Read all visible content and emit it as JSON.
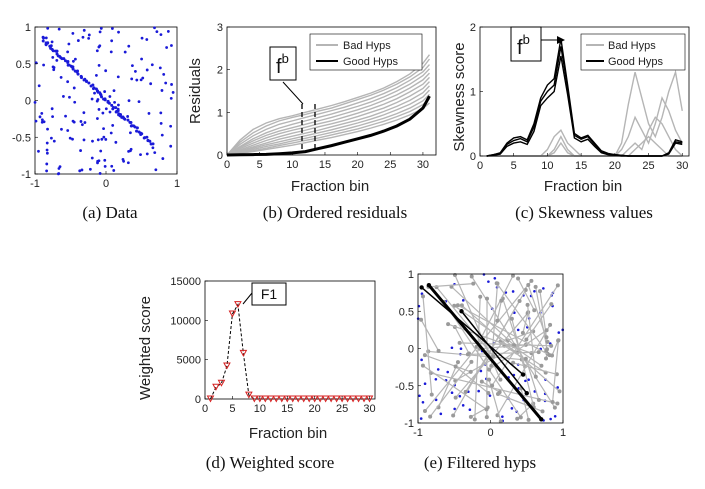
{
  "chart_data": [
    {
      "id": "a",
      "type": "scatter",
      "caption": "(a) Data",
      "xlim": [
        -1,
        1
      ],
      "ylim": [
        -1,
        1
      ],
      "xticks": [
        "-1",
        "0",
        "1"
      ],
      "yticks": [
        "1",
        "0.5",
        "0",
        "-0.5",
        "-1"
      ],
      "point_color": "#1a1ad8",
      "inlier_line": {
        "from": [
          -0.9,
          0.85
        ],
        "to": [
          0.65,
          -0.6
        ]
      },
      "inlier_count": 90,
      "outlier_count": 170
    },
    {
      "id": "b",
      "type": "line",
      "caption": "(b) Ordered residuals",
      "xlabel": "Fraction bin",
      "ylabel": "Residuals",
      "xlim": [
        0,
        32
      ],
      "ylim": [
        0,
        3
      ],
      "xticks": [
        "0",
        "5",
        "10",
        "15",
        "20",
        "25",
        "30"
      ],
      "yticks": [
        "3",
        "2",
        "1",
        "0"
      ],
      "legend": [
        "Bad Hyps",
        "Good Hyps"
      ],
      "legend_position": "top-right",
      "annotation": {
        "label": "f",
        "sup": "b",
        "bin_range": [
          11.5,
          13.5
        ]
      },
      "series": [
        {
          "name": "Good Hyps",
          "color": "#000000",
          "x": [
            0,
            2,
            4,
            6,
            8,
            10,
            12,
            14,
            16,
            18,
            20,
            22,
            24,
            26,
            28,
            30,
            31
          ],
          "y": [
            0,
            0.005,
            0.01,
            0.015,
            0.03,
            0.05,
            0.08,
            0.15,
            0.22,
            0.3,
            0.38,
            0.46,
            0.56,
            0.68,
            0.84,
            1.1,
            1.38
          ]
        },
        {
          "name": "Bad Hyps",
          "color": "#b5b5b5",
          "x": [
            0,
            2,
            4,
            6,
            8,
            10,
            12,
            14,
            16,
            18,
            20,
            22,
            24,
            26,
            28,
            30,
            31
          ],
          "lines": [
            [
              0,
              0.35,
              0.6,
              0.75,
              0.85,
              0.92,
              1.0,
              1.08,
              1.16,
              1.25,
              1.35,
              1.45,
              1.57,
              1.72,
              1.9,
              2.15,
              2.35
            ],
            [
              0,
              0.3,
              0.52,
              0.68,
              0.8,
              0.88,
              0.95,
              1.03,
              1.1,
              1.2,
              1.3,
              1.4,
              1.52,
              1.66,
              1.83,
              2.05,
              2.25
            ],
            [
              0,
              0.25,
              0.45,
              0.6,
              0.72,
              0.8,
              0.88,
              0.96,
              1.04,
              1.12,
              1.22,
              1.32,
              1.44,
              1.58,
              1.75,
              1.95,
              2.12
            ],
            [
              0,
              0.2,
              0.38,
              0.52,
              0.63,
              0.72,
              0.8,
              0.88,
              0.96,
              1.05,
              1.14,
              1.24,
              1.36,
              1.5,
              1.66,
              1.86,
              2.02
            ],
            [
              0,
              0.18,
              0.33,
              0.46,
              0.56,
              0.64,
              0.72,
              0.8,
              0.88,
              0.97,
              1.06,
              1.16,
              1.28,
              1.41,
              1.57,
              1.76,
              1.92
            ],
            [
              0,
              0.15,
              0.28,
              0.4,
              0.5,
              0.58,
              0.65,
              0.73,
              0.8,
              0.89,
              0.98,
              1.08,
              1.19,
              1.32,
              1.48,
              1.66,
              1.82
            ],
            [
              0,
              0.12,
              0.23,
              0.34,
              0.43,
              0.51,
              0.58,
              0.66,
              0.73,
              0.81,
              0.9,
              1.0,
              1.1,
              1.23,
              1.38,
              1.56,
              1.72
            ],
            [
              0,
              0.1,
              0.19,
              0.28,
              0.37,
              0.44,
              0.51,
              0.58,
              0.66,
              0.74,
              0.82,
              0.91,
              1.02,
              1.14,
              1.28,
              1.46,
              1.62
            ],
            [
              0,
              0.08,
              0.16,
              0.24,
              0.31,
              0.38,
              0.45,
              0.52,
              0.59,
              0.67,
              0.75,
              0.84,
              0.94,
              1.06,
              1.19,
              1.36,
              1.52
            ],
            [
              0,
              0.06,
              0.13,
              0.2,
              0.26,
              0.33,
              0.39,
              0.46,
              0.53,
              0.6,
              0.68,
              0.77,
              0.86,
              0.97,
              1.1,
              1.27,
              1.42
            ],
            [
              0,
              0.05,
              0.1,
              0.16,
              0.22,
              0.28,
              0.34,
              0.4,
              0.47,
              0.54,
              0.61,
              0.7,
              0.79,
              0.9,
              1.02,
              1.18,
              1.32
            ],
            [
              0,
              0.04,
              0.08,
              0.13,
              0.18,
              0.23,
              0.29,
              0.35,
              0.41,
              0.48,
              0.55,
              0.63,
              0.72,
              0.82,
              0.94,
              1.09,
              1.22
            ]
          ]
        }
      ]
    },
    {
      "id": "c",
      "type": "line",
      "caption": "(c) Skewness values",
      "xlabel": "Fraction bin",
      "ylabel": "Skewness score",
      "xlim": [
        0,
        31
      ],
      "ylim": [
        0,
        2
      ],
      "xticks": [
        "0",
        "5",
        "10",
        "15",
        "20",
        "25",
        "30"
      ],
      "yticks": [
        "2",
        "1",
        "0"
      ],
      "legend": [
        "Bad Hyps",
        "Good Hyps"
      ],
      "legend_position": "top-right",
      "annotation": {
        "label": "f",
        "sup": "b",
        "bin": 12
      },
      "series": [
        {
          "name": "Good Hyps",
          "color": "#000000",
          "x": [
            1,
            2,
            3,
            4,
            5,
            6,
            7,
            8,
            9,
            10,
            11,
            12,
            13,
            14,
            15,
            16,
            17,
            18,
            19,
            20,
            21,
            22,
            23,
            24,
            25,
            26,
            27,
            28,
            29,
            30
          ],
          "lines": [
            [
              0,
              0.02,
              0.05,
              0.2,
              0.28,
              0.3,
              0.25,
              0.5,
              0.9,
              1.1,
              1.2,
              1.82,
              1.1,
              0.35,
              0.28,
              0.32,
              0.2,
              0.08,
              0.04,
              0.02,
              0.01,
              0,
              0,
              0,
              0,
              0,
              0,
              0.05,
              0.25,
              0.22
            ],
            [
              0,
              0.02,
              0.04,
              0.18,
              0.24,
              0.27,
              0.22,
              0.45,
              0.85,
              1.0,
              1.1,
              1.7,
              1.05,
              0.32,
              0.26,
              0.3,
              0.18,
              0.06,
              0.03,
              0.02,
              0.01,
              0,
              0,
              0,
              0,
              0,
              0,
              0.04,
              0.22,
              0.2
            ],
            [
              0,
              0.01,
              0.03,
              0.15,
              0.2,
              0.22,
              0.18,
              0.38,
              0.78,
              0.9,
              1.0,
              1.55,
              0.95,
              0.28,
              0.22,
              0.26,
              0.15,
              0.05,
              0.02,
              0.01,
              0,
              0,
              0,
              0,
              0,
              0,
              0,
              0.03,
              0.2,
              0.18
            ]
          ]
        },
        {
          "name": "Bad Hyps",
          "color": "#b5b5b5",
          "x": [
            1,
            2,
            3,
            4,
            5,
            6,
            7,
            8,
            9,
            10,
            11,
            12,
            13,
            14,
            15,
            16,
            17,
            18,
            19,
            20,
            21,
            22,
            23,
            24,
            25,
            26,
            27,
            28,
            29,
            30
          ],
          "lines": [
            [
              0,
              0,
              0,
              0,
              0,
              0,
              0,
              0,
              0,
              0,
              0,
              0,
              0,
              0,
              0,
              0,
              0,
              0,
              0,
              0,
              0.2,
              0.8,
              1.3,
              0.9,
              0.5,
              0.3,
              0.6,
              1.0,
              1.3,
              0.7
            ],
            [
              0,
              0,
              0,
              0,
              0,
              0,
              0,
              0,
              0,
              0,
              0.1,
              0.3,
              0.1,
              0,
              0,
              0,
              0,
              0,
              0,
              0,
              0.1,
              0.3,
              0.6,
              0.4,
              0.2,
              0.5,
              0.9,
              0.7,
              0.4,
              0.2
            ],
            [
              0,
              0,
              0,
              0,
              0,
              0,
              0,
              0,
              0,
              0,
              0.05,
              0.2,
              0.05,
              0,
              0,
              0,
              0,
              0,
              0,
              0,
              0,
              0.1,
              0.2,
              0.1,
              0.4,
              0.6,
              0.5,
              0.3,
              0.1,
              0
            ],
            [
              0,
              0,
              0,
              0,
              0,
              0,
              0,
              0,
              0,
              0.1,
              0.3,
              0.4,
              0.2,
              0.1,
              0,
              0,
              0,
              0,
              0,
              0,
              0,
              0,
              0.1,
              0.2,
              0.3,
              0.2,
              0.1,
              0,
              0,
              0
            ]
          ]
        }
      ]
    },
    {
      "id": "d",
      "type": "line",
      "caption": "(d) Weighted score",
      "xlabel": "Fraction bin",
      "ylabel": "Weighted score",
      "xlim": [
        0,
        31
      ],
      "ylim": [
        0,
        15000
      ],
      "xticks": [
        "0",
        "5",
        "10",
        "15",
        "20",
        "25",
        "30"
      ],
      "yticks": [
        "15000",
        "10000",
        "5000",
        "0"
      ],
      "annotation": {
        "label": "F1",
        "bin": 7
      },
      "marker_color": "#d62020",
      "series": [
        {
          "name": "",
          "color": "#000000",
          "x": [
            1,
            2,
            3,
            4,
            5,
            6,
            7,
            8,
            9,
            10,
            11,
            12,
            13,
            14,
            15,
            16,
            17,
            18,
            19,
            20,
            21,
            22,
            23,
            24,
            25,
            26,
            27,
            28,
            29,
            30
          ],
          "values": [
            0,
            1500,
            2000,
            4200,
            10800,
            12000,
            5800,
            500,
            0,
            0,
            0,
            0,
            0,
            0,
            0,
            0,
            0,
            0,
            0,
            0,
            0,
            0,
            0,
            0,
            0,
            0,
            0,
            0,
            0,
            0
          ]
        }
      ]
    },
    {
      "id": "e",
      "type": "scatter",
      "caption": "(e) Filtered hyps",
      "xlim": [
        -1,
        1
      ],
      "ylim": [
        -1,
        1
      ],
      "xticks": [
        "-1",
        "0",
        "1"
      ],
      "yticks": [
        "1",
        "0.5",
        "0",
        "-0.5",
        "-1"
      ],
      "point_color": "#1a1ad8",
      "hyp_color": "#b5b5b5",
      "good_color": "#000000",
      "good_hyps": [
        {
          "from": [
            -0.85,
            0.85
          ],
          "to": [
            0.7,
            -0.95
          ]
        },
        {
          "from": [
            -0.95,
            0.82
          ],
          "to": [
            0.45,
            -0.35
          ]
        },
        {
          "from": [
            -0.4,
            0.5
          ],
          "to": [
            0.5,
            -0.6
          ]
        }
      ],
      "bad_hyp_count": 60
    }
  ]
}
